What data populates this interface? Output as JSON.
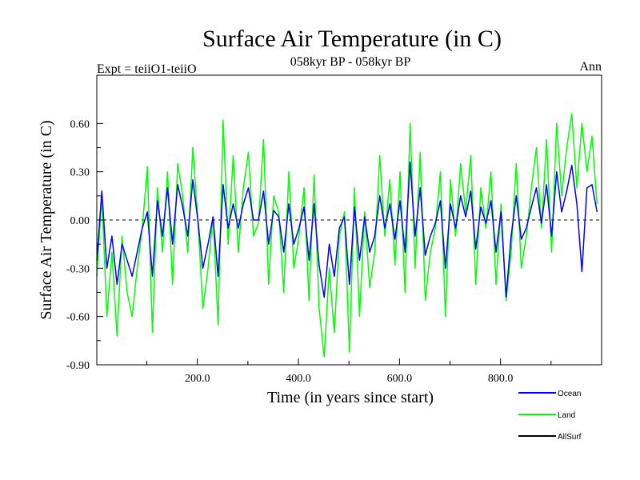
{
  "chart_data": {
    "type": "line",
    "title": "Surface Air Temperature (in C)",
    "subtitle": "058kyr BP - 058kyr BP",
    "top_left_label": "Expt = teiiO1-teiiO",
    "top_right_label": "Ann",
    "xlabel": "Time (in years since start)",
    "ylabel": "Surface Air Temperature (in C)",
    "xlim": [
      1,
      1000
    ],
    "ylim": [
      -0.9,
      0.9
    ],
    "x_ticks": [
      200,
      400,
      600,
      800
    ],
    "x_tick_labels": [
      "200.0",
      "400.0",
      "600.0",
      "800.0"
    ],
    "y_ticks": [
      -0.9,
      -0.6,
      -0.3,
      0.0,
      0.3,
      0.6
    ],
    "y_tick_labels": [
      "-0.90",
      "-0.60",
      "-0.30",
      "0.00",
      "0.30",
      "0.60"
    ],
    "zero_line": true,
    "grid": false,
    "legend_position": "bottom-right",
    "series": [
      {
        "name": "Land",
        "color": "#00ff00",
        "x_start": 1,
        "x_step": 10,
        "values": [
          -0.35,
          0.15,
          -0.6,
          -0.2,
          -0.72,
          -0.1,
          -0.45,
          -0.6,
          -0.3,
          -0.05,
          0.33,
          -0.7,
          0.2,
          -0.2,
          0.3,
          -0.4,
          0.35,
          0.15,
          -0.2,
          0.45,
          0.0,
          -0.55,
          -0.3,
          0.02,
          -0.65,
          0.62,
          -0.15,
          0.4,
          -0.2,
          0.2,
          0.42,
          -0.1,
          -0.02,
          0.5,
          -0.4,
          0.15,
          0.05,
          -0.45,
          0.3,
          -0.3,
          -0.1,
          0.2,
          -0.5,
          0.28,
          -0.55,
          -0.85,
          -0.3,
          -0.7,
          -0.1,
          0.05,
          -0.82,
          0.2,
          -0.6,
          0.05,
          -0.42,
          -0.2,
          0.4,
          -0.1,
          0.25,
          -0.28,
          0.3,
          -0.45,
          0.6,
          -0.3,
          0.42,
          -0.5,
          -0.2,
          -0.05,
          0.3,
          -0.6,
          0.25,
          -0.1,
          0.35,
          0.05,
          0.4,
          -0.4,
          0.2,
          -0.05,
          0.3,
          -0.4,
          0.1,
          -0.5,
          -0.2,
          0.35,
          -0.3,
          -0.1,
          0.2,
          0.45,
          -0.05,
          0.5,
          -0.2,
          0.6,
          0.15,
          0.45,
          0.66,
          0.2,
          0.6,
          0.3,
          0.52,
          0.1
        ]
      },
      {
        "name": "Ocean",
        "color": "#0000ff",
        "x_start": 1,
        "x_step": 10,
        "values": [
          -0.25,
          0.18,
          -0.3,
          -0.1,
          -0.4,
          -0.15,
          -0.25,
          -0.35,
          -0.2,
          -0.05,
          0.05,
          -0.35,
          0.12,
          -0.1,
          0.2,
          -0.15,
          0.22,
          0.08,
          -0.1,
          0.25,
          0.0,
          -0.3,
          -0.15,
          0.02,
          -0.35,
          0.22,
          -0.05,
          0.1,
          -0.05,
          0.1,
          0.2,
          0.0,
          0.0,
          0.18,
          -0.15,
          0.06,
          0.02,
          -0.2,
          0.1,
          -0.15,
          -0.05,
          0.08,
          -0.25,
          0.1,
          -0.28,
          -0.48,
          -0.15,
          -0.35,
          -0.05,
          0.02,
          -0.4,
          0.08,
          -0.25,
          0.02,
          -0.2,
          -0.1,
          0.15,
          -0.05,
          0.1,
          -0.12,
          0.12,
          -0.2,
          0.36,
          -0.1,
          0.2,
          -0.22,
          -0.1,
          -0.02,
          0.12,
          -0.3,
          0.1,
          -0.05,
          0.15,
          0.02,
          0.18,
          -0.18,
          0.08,
          -0.02,
          0.12,
          -0.2,
          0.05,
          -0.48,
          -0.1,
          0.15,
          -0.12,
          -0.05,
          0.08,
          0.2,
          -0.02,
          0.22,
          -0.1,
          0.3,
          0.05,
          0.18,
          0.34,
          0.1,
          -0.32,
          0.2,
          0.22,
          0.05
        ]
      },
      {
        "name": "AllSurf",
        "color": "#000000",
        "values": []
      }
    ]
  }
}
